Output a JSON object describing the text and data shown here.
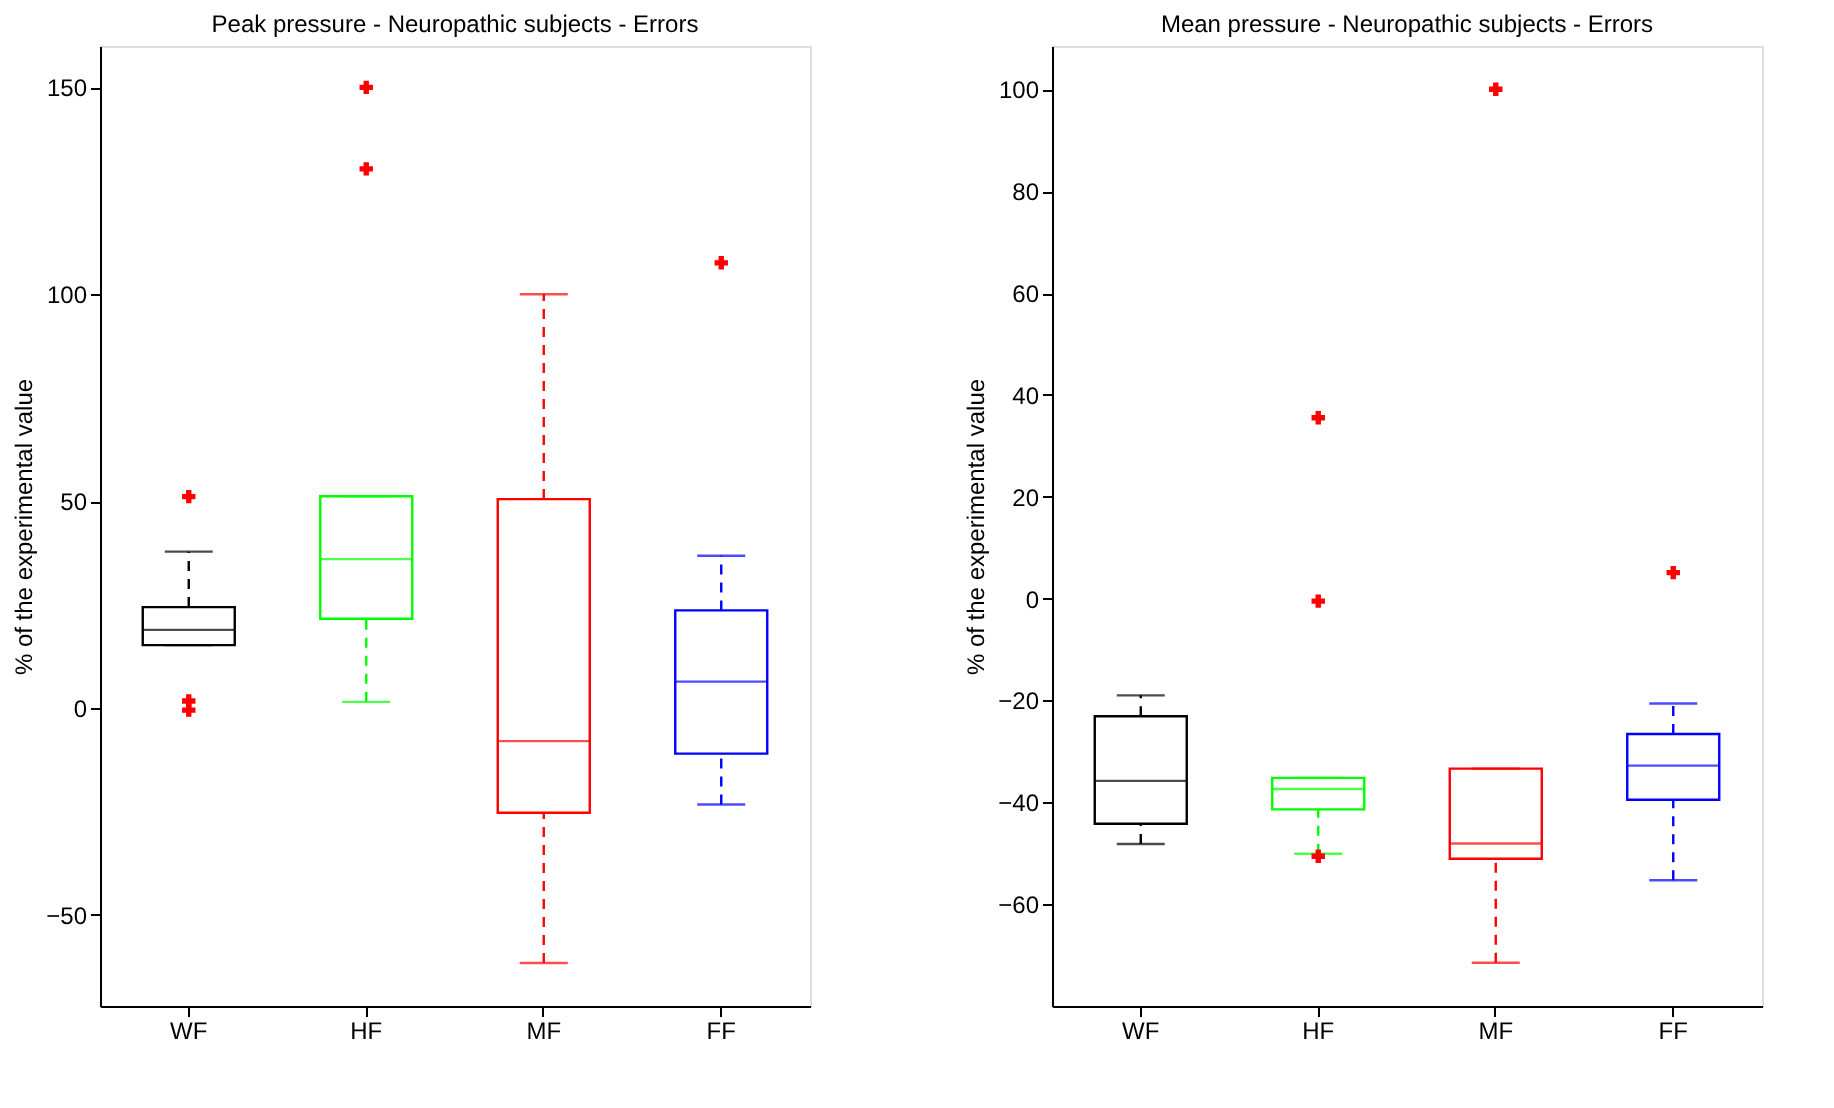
{
  "chart_data": [
    {
      "type": "box",
      "title": "Peak pressure - Neuropathic subjects - Errors",
      "ylabel": "% of the experimental value",
      "categories": [
        "WF",
        "HF",
        "MF",
        "FF"
      ],
      "colors": [
        "#000000",
        "#00ff00",
        "#ff0000",
        "#0000ff"
      ],
      "line_style": "dashed",
      "grid": false,
      "legend": false,
      "ylim": [
        -72,
        160
      ],
      "yticks": [
        -50,
        0,
        50,
        100,
        150
      ],
      "boxes": [
        {
          "low": 15.2,
          "q1": 15.2,
          "median": 18.9,
          "q3": 24.4,
          "high": 37.8
        },
        {
          "low": 1.5,
          "q1": 21.6,
          "median": 36.0,
          "q3": 51.2,
          "high": 51.2
        },
        {
          "low": -61.6,
          "q1": -25.3,
          "median": -8.0,
          "q3": 50.5,
          "high": 100
        },
        {
          "low": -23.3,
          "q1": -11.0,
          "median": 6.4,
          "q3": 23.6,
          "high": 36.8
        }
      ],
      "series": [
        {
          "type": "scatter",
          "color": "#ff0000",
          "marker": "cross",
          "x": [
            "WF",
            "WF",
            "WF",
            "HF",
            "HF",
            "FF"
          ],
          "values": [
            51.1,
            1.7,
            -0.5,
            150,
            130.3,
            107.6
          ]
        }
      ]
    },
    {
      "type": "box",
      "title": "Mean pressure - Neuropathic subjects - Errors",
      "ylabel": "% of the experimental value",
      "categories": [
        "WF",
        "HF",
        "MF",
        "FF"
      ],
      "colors": [
        "#000000",
        "#00ff00",
        "#ff0000",
        "#0000ff"
      ],
      "line_style": "dashed",
      "grid": false,
      "legend": false,
      "ylim": [
        -80,
        108.5
      ],
      "yticks": [
        -60,
        -40,
        -20,
        0,
        20,
        40,
        60,
        80,
        100
      ],
      "boxes": [
        {
          "low": -48.2,
          "q1": -44.2,
          "median": -35.8,
          "q3": -23.1,
          "high": -19.0
        },
        {
          "low": -50.1,
          "q1": -41.4,
          "median": -37.4,
          "q3": -35.2,
          "high": -35.2
        },
        {
          "low": -71.5,
          "q1": -51.1,
          "median": -48.1,
          "q3": -33.4,
          "high": -33.4
        },
        {
          "low": -55.3,
          "q1": -39.5,
          "median": -32.8,
          "q3": -26.6,
          "high": -20.6
        }
      ],
      "series": [
        {
          "type": "scatter",
          "color": "#ff0000",
          "marker": "cross",
          "x": [
            "HF",
            "HF",
            "HF",
            "MF",
            "FF"
          ],
          "values": [
            -50.6,
            -0.5,
            35.5,
            100,
            5.1
          ]
        }
      ]
    }
  ]
}
